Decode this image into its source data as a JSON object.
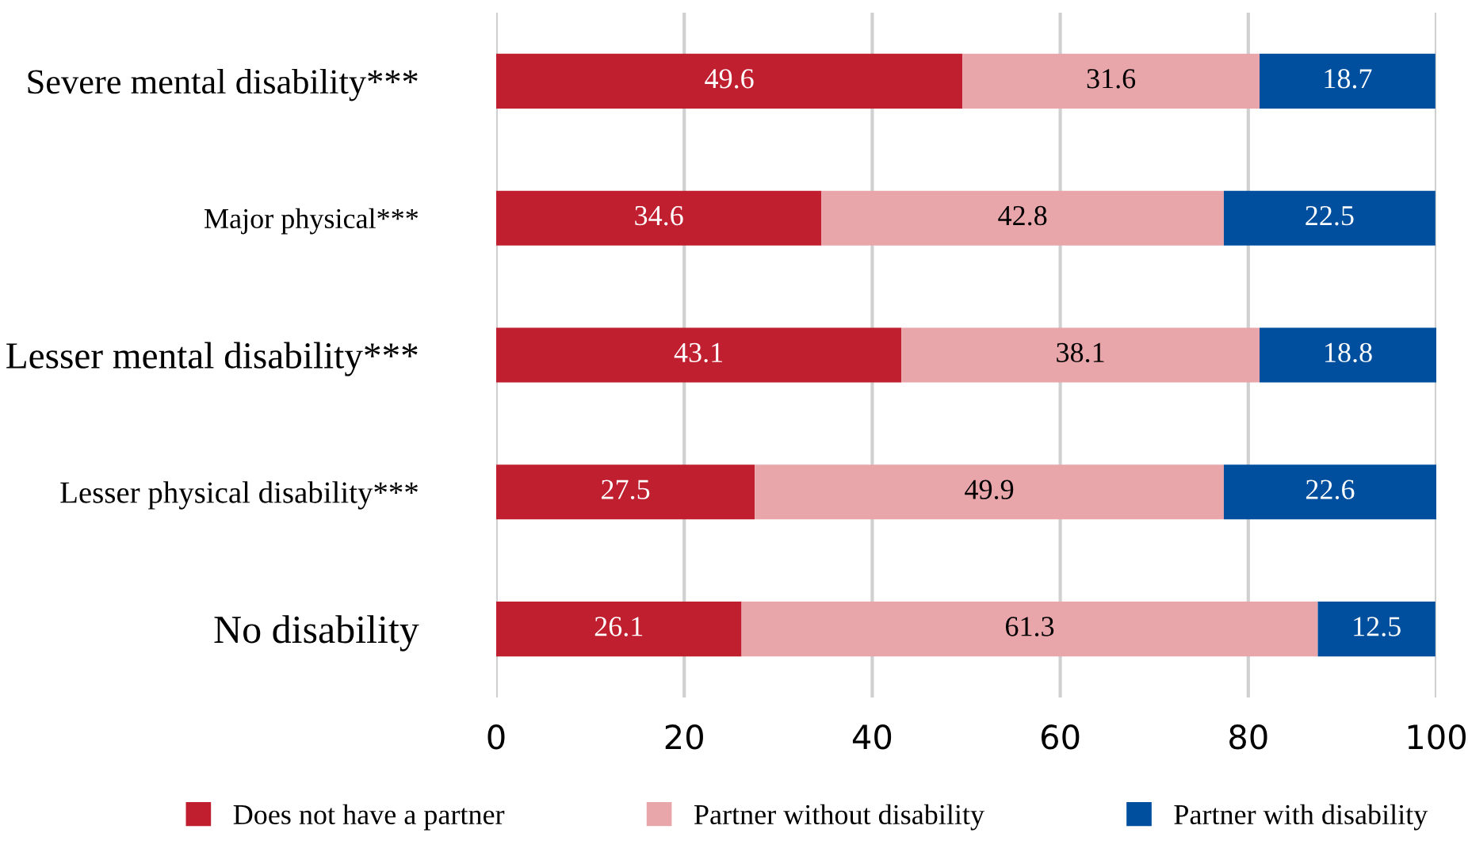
{
  "chart_data": {
    "type": "bar",
    "orientation": "horizontal",
    "stacked": true,
    "categories": [
      "Severe mental disability***",
      "Major physical***",
      "Lesser mental disability***",
      "Lesser physical disability***",
      "No disability"
    ],
    "series": [
      {
        "name": "Does not have a partner",
        "color": "#c01f2f",
        "values": [
          49.6,
          34.6,
          43.1,
          27.5,
          26.1
        ]
      },
      {
        "name": "Partner without disability",
        "color": "#e8a6ab",
        "values": [
          31.6,
          42.8,
          38.1,
          49.9,
          61.3
        ]
      },
      {
        "name": "Partner with disability",
        "color": "#004f9e",
        "values": [
          18.7,
          22.5,
          18.8,
          22.6,
          12.5
        ]
      }
    ],
    "xlim": [
      0,
      100
    ],
    "xticks": [
      0,
      20,
      40,
      60,
      80,
      100
    ],
    "grid": "x",
    "legend": "bottom",
    "data_labels": true
  }
}
